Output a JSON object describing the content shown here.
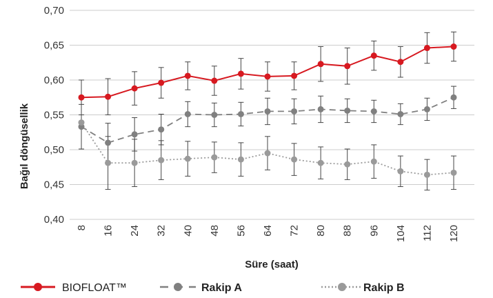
{
  "chart_data": {
    "type": "line",
    "title": "",
    "xlabel": "Süre (saat)",
    "ylabel": "Bağıl döngüsellik",
    "ylim": [
      0.4,
      0.7
    ],
    "yticks": [
      "0,40",
      "0,45",
      "0,50",
      "0,55",
      "0,60",
      "0,65",
      "0,70"
    ],
    "x": [
      8,
      16,
      24,
      32,
      40,
      48,
      56,
      64,
      72,
      80,
      88,
      96,
      104,
      112,
      120
    ],
    "xtick_labels": [
      "8",
      "16",
      "24",
      "32",
      "40",
      "48",
      "56",
      "64",
      "72",
      "80",
      "88",
      "96",
      "104",
      "112",
      "120"
    ],
    "grid": "horizontal",
    "legend_position": "bottom",
    "series": [
      {
        "name": "BIOFLOAT™",
        "color": "#d71920",
        "line_style": "solid",
        "values": [
          0.575,
          0.576,
          0.588,
          0.596,
          0.606,
          0.599,
          0.609,
          0.605,
          0.606,
          0.623,
          0.62,
          0.635,
          0.626,
          0.646,
          0.648
        ],
        "errors": [
          0.025,
          0.026,
          0.024,
          0.022,
          0.02,
          0.021,
          0.022,
          0.021,
          0.02,
          0.025,
          0.026,
          0.021,
          0.022,
          0.022,
          0.021
        ]
      },
      {
        "name": "Rakip A",
        "color": "#808080",
        "line_style": "dashed",
        "values": [
          0.533,
          0.51,
          0.522,
          0.529,
          0.551,
          0.55,
          0.551,
          0.555,
          0.555,
          0.558,
          0.556,
          0.555,
          0.551,
          0.558,
          0.575
        ],
        "errors": [
          0.032,
          0.028,
          0.024,
          0.022,
          0.018,
          0.017,
          0.017,
          0.019,
          0.018,
          0.019,
          0.017,
          0.016,
          0.015,
          0.016,
          0.016
        ]
      },
      {
        "name": "Rakip B",
        "color": "#9a9a9a",
        "line_style": "dotted",
        "values": [
          0.539,
          0.481,
          0.481,
          0.485,
          0.487,
          0.489,
          0.486,
          0.495,
          0.486,
          0.481,
          0.479,
          0.483,
          0.469,
          0.464,
          0.467
        ],
        "errors": [
          0.038,
          0.038,
          0.034,
          0.028,
          0.025,
          0.022,
          0.024,
          0.024,
          0.023,
          0.023,
          0.022,
          0.024,
          0.022,
          0.022,
          0.024
        ]
      }
    ]
  }
}
